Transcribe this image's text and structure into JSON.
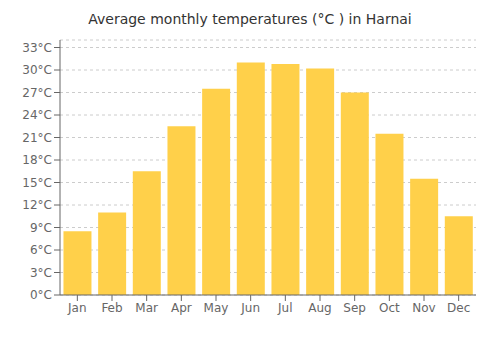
{
  "chart_data": {
    "type": "bar",
    "title": "Average monthly temperatures (°C ) in Harnai",
    "categories": [
      "Jan",
      "Feb",
      "Mar",
      "Apr",
      "May",
      "Jun",
      "Jul",
      "Aug",
      "Sep",
      "Oct",
      "Nov",
      "Dec"
    ],
    "values": [
      8.5,
      11.0,
      16.5,
      22.5,
      27.5,
      31.0,
      30.8,
      30.2,
      27.0,
      21.5,
      15.5,
      10.5
    ],
    "color": "#FFD04A",
    "ylim": [
      0,
      34
    ],
    "yticks": [
      {
        "value": 0,
        "label": "0°C"
      },
      {
        "value": 3,
        "label": "3°C"
      },
      {
        "value": 6,
        "label": "6°C"
      },
      {
        "value": 9,
        "label": "9°C"
      },
      {
        "value": 12,
        "label": "12°C"
      },
      {
        "value": 15,
        "label": "15°C"
      },
      {
        "value": 18,
        "label": "18°C"
      },
      {
        "value": 21,
        "label": "21°C"
      },
      {
        "value": 24,
        "label": "24°C"
      },
      {
        "value": 27,
        "label": "27°C"
      },
      {
        "value": 30,
        "label": "30°C"
      },
      {
        "value": 33,
        "label": "33°C"
      }
    ],
    "grid": true
  }
}
